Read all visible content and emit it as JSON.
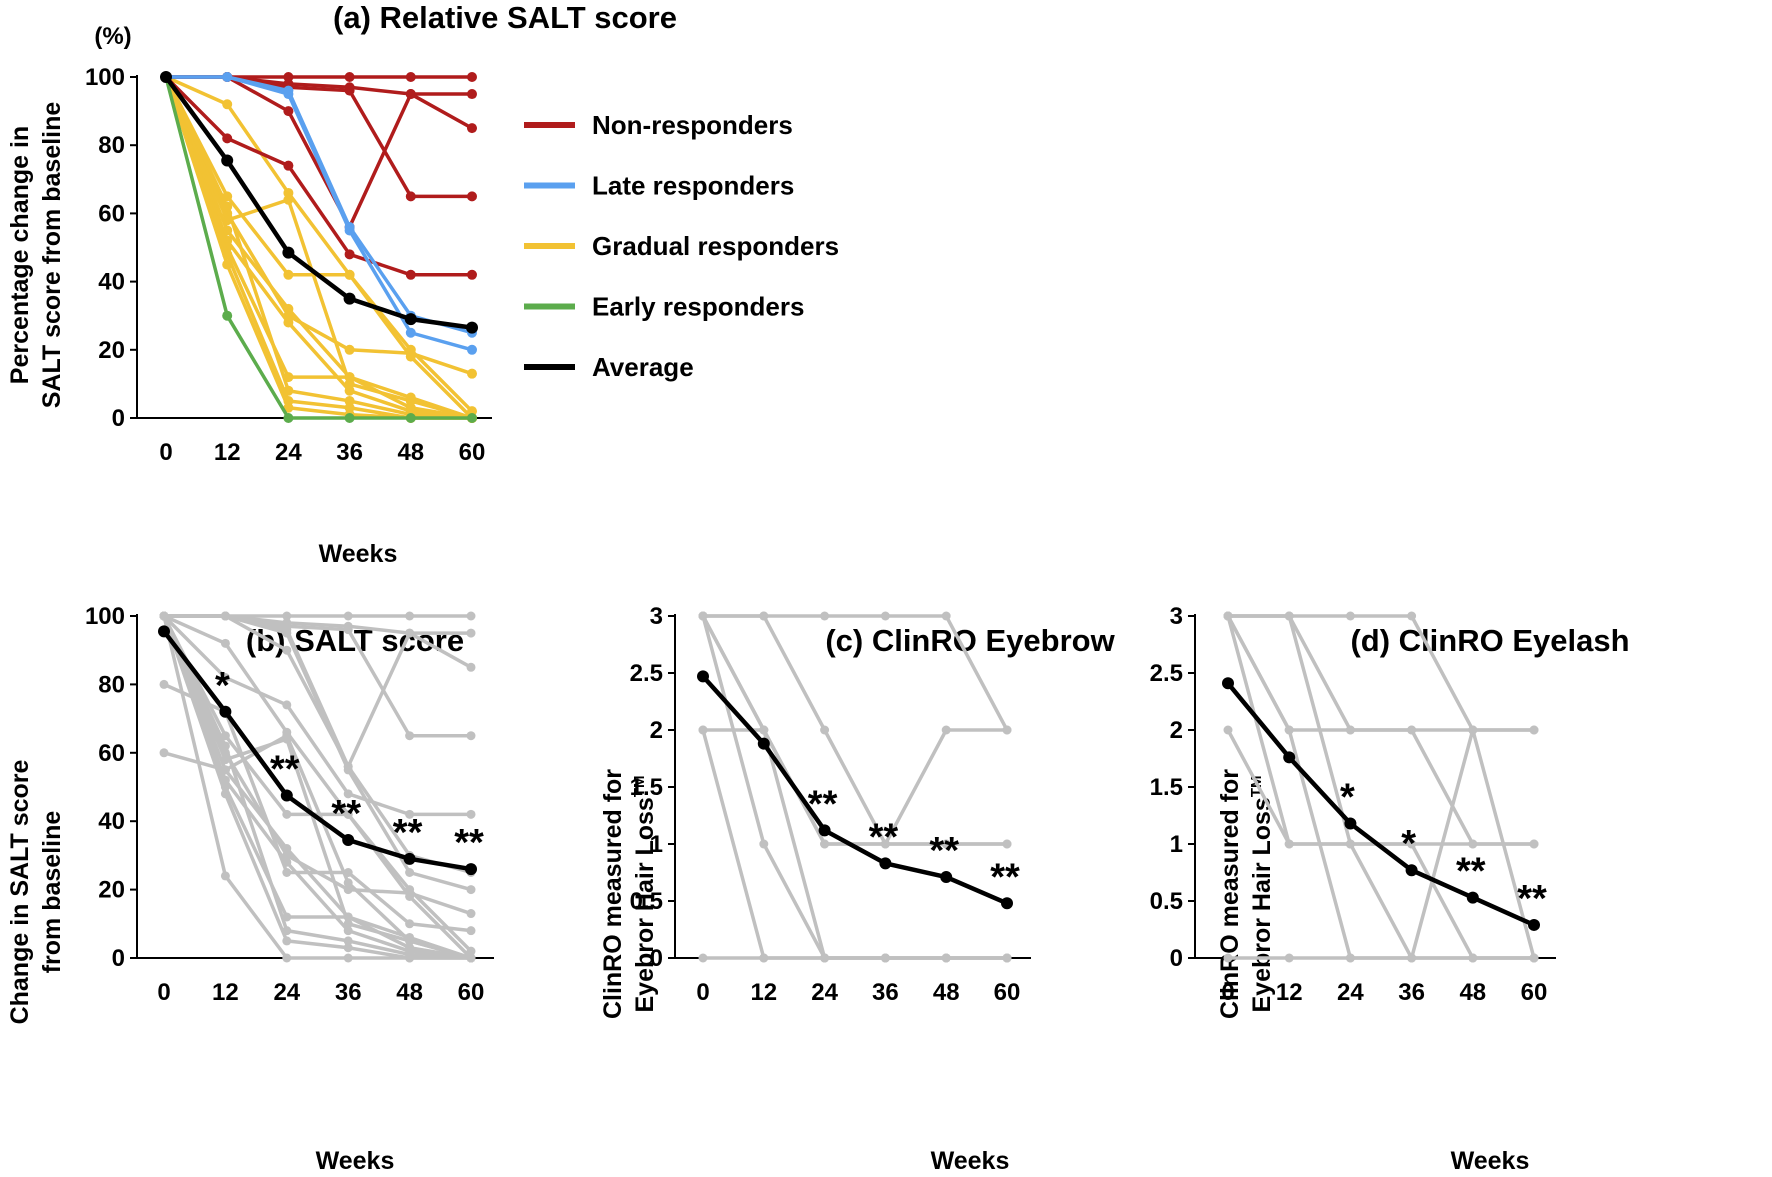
{
  "chart_data": [
    {
      "id": "a",
      "type": "line",
      "title": "(a) Relative SALT score",
      "unit_label": "(%)",
      "ylabel_line1": "Percentage change in",
      "ylabel_line2": "SALT score from baseline",
      "xlabel": "Weeks",
      "x": [
        0,
        12,
        24,
        36,
        48,
        60
      ],
      "ylim": [
        0,
        100
      ],
      "yticks": [
        0,
        20,
        40,
        60,
        80,
        100
      ],
      "colors": {
        "non": "#b01c1c",
        "late": "#5aa0ef",
        "gradual": "#f2c233",
        "early": "#5cac4c",
        "avg": "#000000"
      },
      "legend": [
        {
          "label": "Non-responders",
          "group": "non"
        },
        {
          "label": "Late responders",
          "group": "late"
        },
        {
          "label": "Gradual responders",
          "group": "gradual"
        },
        {
          "label": "Early responders",
          "group": "early"
        },
        {
          "label": "Average",
          "group": "avg"
        }
      ],
      "series": [
        {
          "group": "gradual",
          "values": [
            100,
            92,
            66,
            42,
            18,
            0
          ]
        },
        {
          "group": "gradual",
          "values": [
            100,
            65,
            42,
            42,
            20,
            2
          ]
        },
        {
          "group": "gradual",
          "values": [
            100,
            60,
            30,
            20,
            19,
            13
          ]
        },
        {
          "group": "gradual",
          "values": [
            100,
            58,
            64,
            10,
            5,
            0
          ]
        },
        {
          "group": "gradual",
          "values": [
            100,
            55,
            32,
            12,
            3,
            0
          ]
        },
        {
          "group": "gradual",
          "values": [
            100,
            52,
            28,
            8,
            2,
            0
          ]
        },
        {
          "group": "gradual",
          "values": [
            100,
            50,
            12,
            12,
            6,
            0
          ]
        },
        {
          "group": "gradual",
          "values": [
            100,
            62,
            8,
            5,
            1,
            0
          ]
        },
        {
          "group": "gradual",
          "values": [
            100,
            48,
            5,
            3,
            0,
            0
          ]
        },
        {
          "group": "gradual",
          "values": [
            100,
            45,
            3,
            1,
            0,
            0
          ]
        },
        {
          "group": "early",
          "values": [
            100,
            30,
            0,
            0,
            0,
            0
          ]
        },
        {
          "group": "non",
          "values": [
            100,
            100,
            100,
            100,
            100,
            100
          ]
        },
        {
          "group": "non",
          "values": [
            100,
            100,
            98,
            97,
            95,
            95
          ]
        },
        {
          "group": "non",
          "values": [
            100,
            100,
            97,
            96,
            65,
            65
          ]
        },
        {
          "group": "non",
          "values": [
            100,
            100,
            90,
            56,
            95,
            85
          ]
        },
        {
          "group": "non",
          "values": [
            100,
            82,
            74,
            48,
            42,
            42
          ]
        },
        {
          "group": "late",
          "values": [
            100,
            100,
            95,
            55,
            25,
            20
          ]
        },
        {
          "group": "late",
          "values": [
            100,
            100,
            96,
            56,
            30,
            25
          ]
        },
        {
          "group": "avg",
          "values": [
            100,
            75.5,
            48.5,
            35,
            29,
            26.5
          ]
        }
      ]
    },
    {
      "id": "b",
      "type": "line",
      "title": "(b) SALT score",
      "ylabel_line1": "Change in SALT score",
      "ylabel_line2": "from baseline",
      "xlabel": "Weeks",
      "x": [
        0,
        12,
        24,
        36,
        48,
        60
      ],
      "ylim": [
        0,
        100
      ],
      "yticks": [
        0,
        20,
        40,
        60,
        80,
        100
      ],
      "colors": {
        "individual": "#c0c0c0",
        "avg": "#000000"
      },
      "individual": [
        [
          100,
          100,
          100,
          100,
          100,
          100
        ],
        [
          100,
          100,
          98,
          97,
          95,
          95
        ],
        [
          100,
          100,
          97,
          96,
          65,
          65
        ],
        [
          100,
          100,
          90,
          56,
          95,
          85
        ],
        [
          100,
          82,
          74,
          48,
          42,
          42
        ],
        [
          100,
          100,
          95,
          55,
          25,
          20
        ],
        [
          100,
          100,
          96,
          56,
          30,
          25
        ],
        [
          100,
          92,
          66,
          42,
          18,
          0
        ],
        [
          100,
          65,
          42,
          42,
          20,
          2
        ],
        [
          100,
          60,
          30,
          20,
          19,
          13
        ],
        [
          100,
          58,
          64,
          10,
          5,
          0
        ],
        [
          100,
          55,
          32,
          12,
          3,
          0
        ],
        [
          100,
          52,
          28,
          8,
          2,
          0
        ],
        [
          100,
          50,
          12,
          12,
          6,
          0
        ],
        [
          100,
          62,
          8,
          5,
          1,
          0
        ],
        [
          100,
          48,
          5,
          3,
          0,
          0
        ],
        [
          100,
          24,
          0,
          0,
          0,
          0
        ],
        [
          80,
          72,
          25,
          25,
          10,
          8
        ],
        [
          60,
          55,
          65,
          22,
          5,
          0
        ]
      ],
      "average": [
        95.5,
        72,
        47.5,
        34.5,
        29,
        26
      ],
      "stars": [
        "",
        "*",
        "**",
        "**",
        "**",
        "**"
      ]
    },
    {
      "id": "c",
      "type": "line",
      "title": "(c) ClinRO Eyebrow",
      "ylabel_line1": "ClinRO measured for",
      "ylabel_line2": "Eyebror Hair Loss",
      "ylabel_tm": "TM",
      "xlabel": "Weeks",
      "x": [
        0,
        12,
        24,
        36,
        48,
        60
      ],
      "ylim": [
        0,
        3
      ],
      "yticks": [
        0,
        0.5,
        1,
        1.5,
        2,
        2.5,
        3
      ],
      "colors": {
        "individual": "#c0c0c0",
        "avg": "#000000"
      },
      "individual": [
        [
          3,
          3,
          3,
          3,
          3,
          2
        ],
        [
          3,
          3,
          2,
          1,
          1,
          1
        ],
        [
          3,
          2,
          0,
          0,
          0,
          0
        ],
        [
          3,
          1,
          0,
          0,
          0,
          0
        ],
        [
          2,
          2,
          1,
          1,
          2,
          2
        ],
        [
          2,
          0,
          0,
          0,
          0,
          0
        ],
        [
          0,
          0,
          0,
          0,
          0,
          0
        ],
        [
          3,
          2,
          1,
          1,
          1,
          1
        ]
      ],
      "average": [
        2.47,
        1.88,
        1.12,
        0.83,
        0.71,
        0.48
      ],
      "stars": [
        "",
        "",
        "**",
        "**",
        "**",
        "**"
      ]
    },
    {
      "id": "d",
      "type": "line",
      "title": "(d) ClinRO Eyelash",
      "ylabel_line1": "ClinRO measured for",
      "ylabel_line2": "Eyebror Hair Loss",
      "ylabel_tm": "TM",
      "xlabel": "Weeks",
      "x": [
        0,
        12,
        24,
        36,
        48,
        60
      ],
      "ylim": [
        0,
        3
      ],
      "yticks": [
        0,
        0.5,
        1,
        1.5,
        2,
        2.5,
        3
      ],
      "colors": {
        "individual": "#c0c0c0",
        "avg": "#000000"
      },
      "individual": [
        [
          3,
          3,
          3,
          3,
          2,
          2
        ],
        [
          3,
          3,
          2,
          2,
          2,
          2
        ],
        [
          3,
          2,
          2,
          2,
          1,
          1
        ],
        [
          3,
          3,
          1,
          1,
          1,
          1
        ],
        [
          3,
          1,
          1,
          0,
          2,
          0
        ],
        [
          2,
          1,
          1,
          1,
          0,
          0
        ],
        [
          3,
          2,
          0,
          0,
          0,
          0
        ],
        [
          0,
          0,
          0,
          0,
          0,
          0
        ]
      ],
      "average": [
        2.41,
        1.76,
        1.18,
        0.77,
        0.53,
        0.29
      ],
      "stars": [
        "",
        "",
        "*",
        "*",
        "**",
        "**"
      ]
    }
  ]
}
